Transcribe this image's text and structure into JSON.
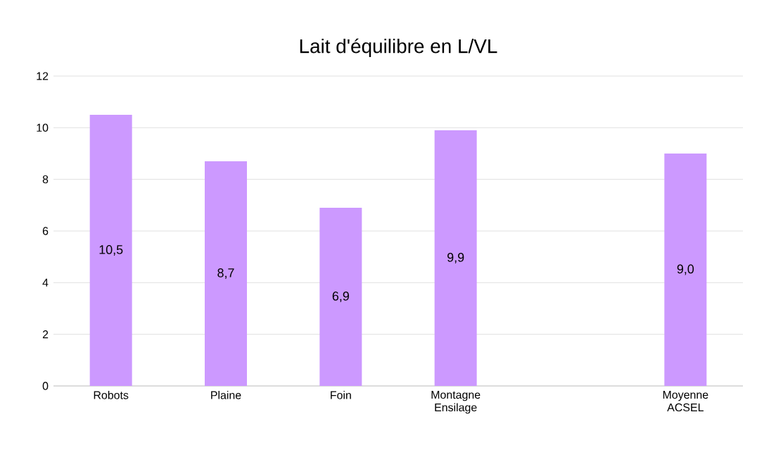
{
  "chart_data": {
    "type": "bar",
    "title": "Lait d'équilibre en L/VL",
    "categories": [
      "Robots",
      "Plaine",
      "Foin",
      "Montagne Ensilage",
      null,
      "Moyenne ACSEL"
    ],
    "values": [
      10.5,
      8.7,
      6.9,
      9.9,
      null,
      9.0
    ],
    "value_labels": [
      "10,5",
      "8,7",
      "6,9",
      "9,9",
      null,
      "9,0"
    ],
    "color": "#cc99ff",
    "ylim": [
      0,
      12
    ],
    "yticks": [
      0,
      2,
      4,
      6,
      8,
      10,
      12
    ],
    "grid": "y"
  }
}
